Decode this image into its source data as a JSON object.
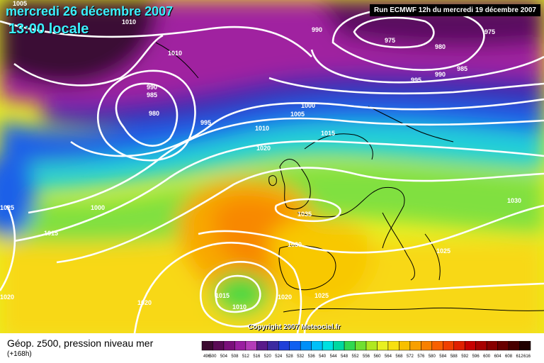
{
  "header": {
    "date": "mercredi 26 décembre 2007",
    "time": "13:00 locale",
    "run": "Run ECMWF 12h du mercredi 19 décembre 2007"
  },
  "footer": {
    "parameter": "Géop. z500, pression niveau mer",
    "lead_time": "(+168h)",
    "copyright": "Copyright 2007 Meteociel.fr"
  },
  "legend": {
    "values": [
      "496",
      "500",
      "504",
      "508",
      "512",
      "516",
      "520",
      "524",
      "528",
      "532",
      "536",
      "540",
      "544",
      "548",
      "552",
      "556",
      "560",
      "564",
      "568",
      "572",
      "576",
      "580",
      "584",
      "588",
      "592",
      "596",
      "600",
      "604",
      "608",
      "612",
      "616"
    ],
    "colors": [
      "#3b0a30",
      "#5a0a55",
      "#7a0f7a",
      "#9a1fa0",
      "#b43cb8",
      "#5a1a8a",
      "#3c2aa0",
      "#2040d8",
      "#1060f0",
      "#0090f8",
      "#00c0f8",
      "#00e0e0",
      "#00d8a0",
      "#30d850",
      "#70e030",
      "#b0e820",
      "#e8f020",
      "#f8e010",
      "#f8c000",
      "#f8a000",
      "#f88000",
      "#f86000",
      "#f04000",
      "#e02000",
      "#c80000",
      "#a80000",
      "#880000",
      "#680000",
      "#480000",
      "#200000"
    ]
  },
  "isobar_labels": [
    "1005",
    "1010",
    "990",
    "975",
    "975",
    "1010",
    "980",
    "985",
    "990",
    "995",
    "990",
    "985",
    "980",
    "995",
    "1000",
    "1005",
    "1010",
    "1015",
    "1020",
    "1000",
    "1025",
    "1015",
    "1035",
    "1030",
    "1030",
    "1025",
    "1015",
    "1010",
    "1020",
    "1020",
    "1025",
    "1020"
  ]
}
